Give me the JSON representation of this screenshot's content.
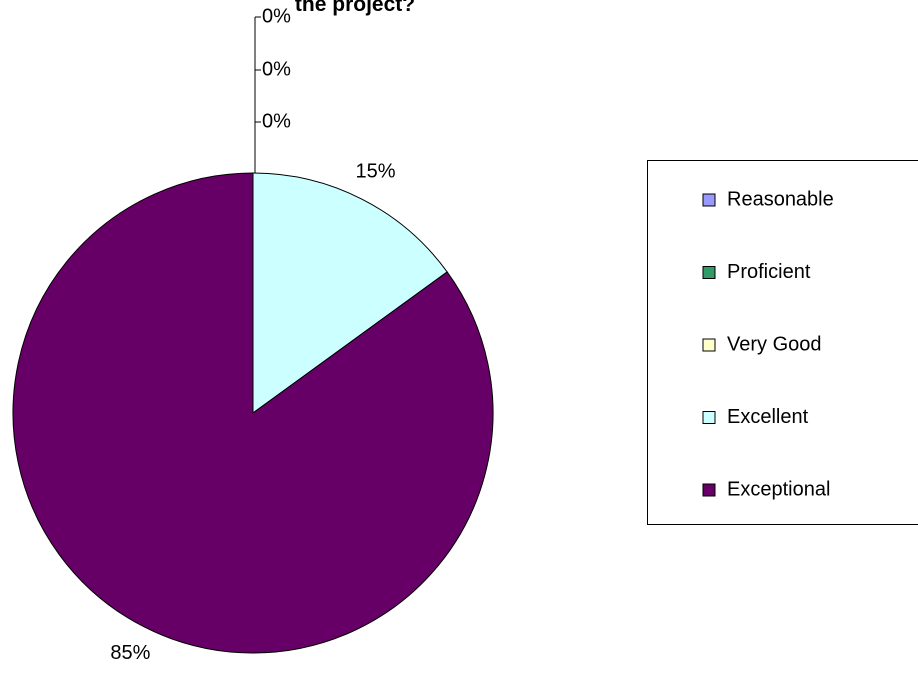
{
  "chart_data": {
    "type": "pie",
    "title": "the project?",
    "categories": [
      "Reasonable",
      "Proficient",
      "Very Good",
      "Excellent",
      "Exceptional"
    ],
    "values": [
      0,
      0,
      0,
      15,
      85
    ],
    "value_labels": [
      "0%",
      "0%",
      "0%",
      "15%",
      "85%"
    ],
    "colors": [
      "#9999ff",
      "#339966",
      "#ffffcc",
      "#ccffff",
      "#660066"
    ],
    "legend": "right"
  }
}
